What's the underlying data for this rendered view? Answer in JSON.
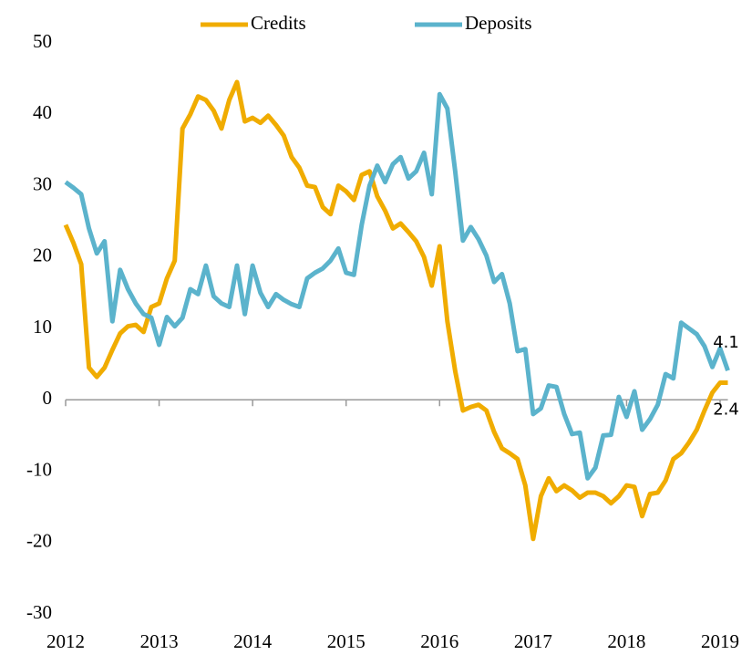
{
  "chart_data": {
    "type": "line",
    "categories": [
      "2012",
      null,
      null,
      null,
      null,
      null,
      null,
      null,
      null,
      null,
      null,
      null,
      "2013",
      null,
      null,
      null,
      null,
      null,
      null,
      null,
      null,
      null,
      null,
      null,
      "2014",
      null,
      null,
      null,
      null,
      null,
      null,
      null,
      null,
      null,
      null,
      null,
      "2015",
      null,
      null,
      null,
      null,
      null,
      null,
      null,
      null,
      null,
      null,
      null,
      "2016",
      null,
      null,
      null,
      null,
      null,
      null,
      null,
      null,
      null,
      null,
      null,
      "2017",
      null,
      null,
      null,
      null,
      null,
      null,
      null,
      null,
      null,
      null,
      null,
      "2018",
      null,
      null,
      null,
      null,
      null,
      null,
      null,
      null,
      null,
      null,
      null,
      "2019",
      null
    ],
    "series": [
      {
        "name": "Credits",
        "color": "#f0ac00",
        "values": [
          24.5,
          22,
          19,
          4.5,
          3.2,
          4.5,
          7,
          9.3,
          10.3,
          10.5,
          9.5,
          13,
          13.5,
          17,
          19.5,
          38,
          40,
          42.5,
          42,
          40.5,
          38,
          42,
          44.5,
          39,
          39.5,
          38.8,
          39.8,
          38.5,
          37,
          34,
          32.5,
          30,
          29.8,
          27,
          26,
          30,
          29.2,
          28,
          31.5,
          32,
          28.5,
          26.5,
          24,
          24.7,
          23.5,
          22.2,
          20,
          16,
          21.5,
          11,
          4,
          -1.5,
          -1,
          -0.7,
          -1.5,
          -4.5,
          -6.8,
          -7.5,
          -8.3,
          -12,
          -19.5,
          -13.5,
          -11,
          -12.8,
          -12,
          -12.7,
          -13.7,
          -13,
          -13,
          -13.5,
          -14.5,
          -13.5,
          -12,
          -12.2,
          -16.3,
          -13.2,
          -13,
          -11.3,
          -8.3,
          -7.5,
          -6,
          -4.2,
          -1.5,
          1,
          2.4,
          2.4
        ]
      },
      {
        "name": "Deposits",
        "color": "#5bb3cc",
        "values": [
          30.5,
          29.7,
          28.8,
          24,
          20.5,
          22.2,
          11,
          18.2,
          15.5,
          13.5,
          12,
          11.5,
          7.7,
          11.6,
          10.3,
          11.5,
          15.5,
          14.8,
          18.8,
          14.5,
          13.5,
          13,
          18.8,
          12,
          18.8,
          15,
          13,
          14.8,
          14,
          13.4,
          13,
          17,
          17.8,
          18.4,
          19.5,
          21.2,
          17.8,
          17.5,
          24.5,
          30,
          32.8,
          30.5,
          33,
          34,
          31,
          32,
          34.6,
          28.8,
          42.8,
          40.8,
          32,
          22.3,
          24.2,
          22.5,
          20.2,
          16.5,
          17.6,
          13.5,
          6.8,
          7.1,
          -2,
          -1.2,
          2,
          1.8,
          -2,
          -4.8,
          -4.6,
          -11,
          -9.5,
          -5,
          -4.9,
          0.4,
          -2.4,
          1.2,
          -4.2,
          -2.7,
          -0.7,
          3.6,
          3,
          10.8,
          10,
          9.2,
          7.5,
          4.6,
          7.2,
          4.1
        ]
      }
    ],
    "label_last": true,
    "ylim": [
      -30,
      50
    ],
    "yticks": [
      -30,
      -20,
      -10,
      0,
      10,
      20,
      30,
      40,
      50
    ],
    "legend": "top"
  }
}
